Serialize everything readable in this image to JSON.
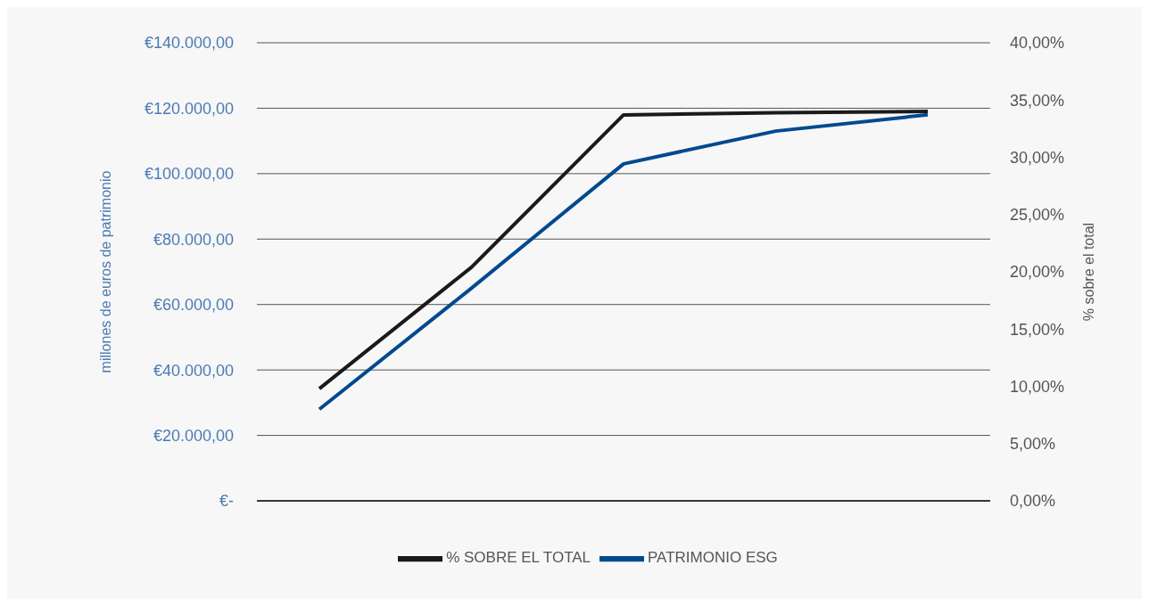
{
  "chart_data": {
    "type": "line",
    "ylabel": "millones de euros de patrimonio",
    "y2label": "% sobre el total",
    "categories": [
      null,
      null,
      null,
      null,
      null
    ],
    "series": [
      {
        "name": "PATRIMONIO ESG",
        "color": "#004a8f",
        "values": [
          28000,
          65000,
          103000,
          113000,
          118000
        ]
      },
      {
        "name": "% SOBRE EL TOTAL",
        "color": "#1a1a1a",
        "axis": "y2",
        "values": [
          9.8,
          20.4,
          33.7,
          33.9,
          34.0
        ]
      }
    ],
    "ylim": [
      0,
      140000
    ],
    "yticks": [
      {
        "value": 0,
        "label": "€-"
      },
      {
        "value": 20000,
        "label": "€20.000,00"
      },
      {
        "value": 40000,
        "label": "€40.000,00"
      },
      {
        "value": 60000,
        "label": "€60.000,00"
      },
      {
        "value": 80000,
        "label": "€80.000,00"
      },
      {
        "value": 100000,
        "label": "€100.000,00"
      },
      {
        "value": 120000,
        "label": "€120.000,00"
      },
      {
        "value": 140000,
        "label": "€140.000,00"
      }
    ],
    "y2lim": [
      0,
      40
    ],
    "y2ticks": [
      {
        "value": 0,
        "label": "0,00%"
      },
      {
        "value": 5,
        "label": "5,00%"
      },
      {
        "value": 10,
        "label": "10,00%"
      },
      {
        "value": 15,
        "label": "15,00%"
      },
      {
        "value": 20,
        "label": "20,00%"
      },
      {
        "value": 25,
        "label": "25,00%"
      },
      {
        "value": 30,
        "label": "30,00%"
      },
      {
        "value": 35,
        "label": "35,00%"
      },
      {
        "value": 40,
        "label": "40,00%"
      }
    ],
    "grid": "y",
    "legend": "bottom",
    "marker": "none",
    "line_style": "solid",
    "tick_labels": "y"
  }
}
